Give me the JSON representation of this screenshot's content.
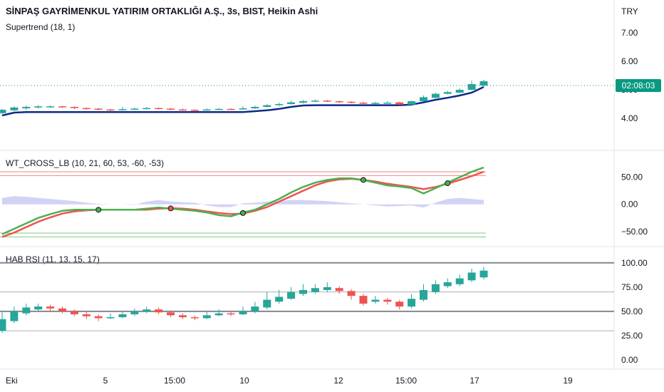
{
  "header": {
    "title": "SİNPAŞ GAYRİMENKUL YATIRIM ORTAKLIĞI A.Ş., 3s, BIST, Heikin Ashi",
    "indicator": "Supertrend (18, 1)",
    "currency": "TRY",
    "countdown": "02:08:03"
  },
  "panes": {
    "wt_label": "WT_CROSS_LB (10, 21, 60, 53, -60, -53)",
    "rsi_label": "HAB RSI (11, 13, 15, 17)"
  },
  "colors": {
    "up": "#26a69a",
    "down": "#ef5350",
    "supertrend": "#0d2a8a",
    "wt1": "#4caf50",
    "wt2": "#ef5350",
    "diff": "#b2b5f0",
    "last_price": "#089981",
    "level_line": "#787b86"
  },
  "chart_data": [
    {
      "type": "candlestick",
      "name": "price",
      "y_ticks": [
        "7.00",
        "6.00",
        "5.00",
        "4.00"
      ],
      "ylim": [
        3.4,
        7.2
      ],
      "last_price_y": 5.0,
      "candles": [
        {
          "o": 4.18,
          "c": 4.3,
          "h": 4.33,
          "l": 4.15
        },
        {
          "o": 4.28,
          "c": 4.38,
          "h": 4.42,
          "l": 4.25
        },
        {
          "o": 4.35,
          "c": 4.4,
          "h": 4.45,
          "l": 4.3
        },
        {
          "o": 4.38,
          "c": 4.42,
          "h": 4.46,
          "l": 4.34
        },
        {
          "o": 4.4,
          "c": 4.42,
          "h": 4.45,
          "l": 4.37
        },
        {
          "o": 4.42,
          "c": 4.4,
          "h": 4.44,
          "l": 4.36
        },
        {
          "o": 4.4,
          "c": 4.36,
          "h": 4.42,
          "l": 4.32
        },
        {
          "o": 4.36,
          "c": 4.34,
          "h": 4.38,
          "l": 4.3
        },
        {
          "o": 4.34,
          "c": 4.31,
          "h": 4.36,
          "l": 4.28
        },
        {
          "o": 4.31,
          "c": 4.3,
          "h": 4.33,
          "l": 4.25
        },
        {
          "o": 4.3,
          "c": 4.32,
          "h": 4.4,
          "l": 4.27
        },
        {
          "o": 4.32,
          "c": 4.34,
          "h": 4.38,
          "l": 4.3
        },
        {
          "o": 4.34,
          "c": 4.36,
          "h": 4.4,
          "l": 4.31
        },
        {
          "o": 4.36,
          "c": 4.34,
          "h": 4.38,
          "l": 4.31
        },
        {
          "o": 4.34,
          "c": 4.31,
          "h": 4.36,
          "l": 4.28
        },
        {
          "o": 4.31,
          "c": 4.3,
          "h": 4.34,
          "l": 4.27
        },
        {
          "o": 4.3,
          "c": 4.29,
          "h": 4.32,
          "l": 4.26
        },
        {
          "o": 4.29,
          "c": 4.31,
          "h": 4.35,
          "l": 4.27
        },
        {
          "o": 4.31,
          "c": 4.33,
          "h": 4.36,
          "l": 4.29
        },
        {
          "o": 4.33,
          "c": 4.32,
          "h": 4.35,
          "l": 4.29
        },
        {
          "o": 4.32,
          "c": 4.35,
          "h": 4.42,
          "l": 4.3
        },
        {
          "o": 4.35,
          "c": 4.4,
          "h": 4.44,
          "l": 4.33
        },
        {
          "o": 4.4,
          "c": 4.46,
          "h": 4.5,
          "l": 4.38
        },
        {
          "o": 4.46,
          "c": 4.5,
          "h": 4.55,
          "l": 4.43
        },
        {
          "o": 4.5,
          "c": 4.56,
          "h": 4.62,
          "l": 4.48
        },
        {
          "o": 4.55,
          "c": 4.6,
          "h": 4.64,
          "l": 4.52
        },
        {
          "o": 4.6,
          "c": 4.62,
          "h": 4.66,
          "l": 4.57
        },
        {
          "o": 4.62,
          "c": 4.6,
          "h": 4.65,
          "l": 4.57
        },
        {
          "o": 4.6,
          "c": 4.58,
          "h": 4.62,
          "l": 4.54
        },
        {
          "o": 4.58,
          "c": 4.55,
          "h": 4.6,
          "l": 4.52
        },
        {
          "o": 4.55,
          "c": 4.52,
          "h": 4.58,
          "l": 4.49
        },
        {
          "o": 4.52,
          "c": 4.54,
          "h": 4.58,
          "l": 4.5
        },
        {
          "o": 4.54,
          "c": 4.55,
          "h": 4.6,
          "l": 4.52
        },
        {
          "o": 4.56,
          "c": 4.48,
          "h": 4.58,
          "l": 4.46
        },
        {
          "o": 4.48,
          "c": 4.6,
          "h": 4.62,
          "l": 4.47
        },
        {
          "o": 4.6,
          "c": 4.74,
          "h": 4.8,
          "l": 4.58
        },
        {
          "o": 4.72,
          "c": 4.86,
          "h": 4.9,
          "l": 4.7
        },
        {
          "o": 4.86,
          "c": 4.92,
          "h": 4.96,
          "l": 4.84
        },
        {
          "o": 4.9,
          "c": 5.0,
          "h": 5.05,
          "l": 4.88
        },
        {
          "o": 5.0,
          "c": 5.2,
          "h": 5.32,
          "l": 4.98
        },
        {
          "o": 5.15,
          "c": 5.3,
          "h": 5.35,
          "l": 5.12
        }
      ],
      "supertrend": [
        4.1,
        4.2,
        4.22,
        4.22,
        4.22,
        4.22,
        4.22,
        4.22,
        4.22,
        4.22,
        4.22,
        4.22,
        4.22,
        4.22,
        4.22,
        4.22,
        4.22,
        4.22,
        4.22,
        4.22,
        4.22,
        4.25,
        4.28,
        4.33,
        4.4,
        4.45,
        4.46,
        4.46,
        4.46,
        4.46,
        4.46,
        4.46,
        4.46,
        4.46,
        4.48,
        4.56,
        4.65,
        4.72,
        4.8,
        4.9,
        5.1
      ]
    },
    {
      "type": "line",
      "name": "wt_cross",
      "y_ticks": [
        "50.00",
        "0.00",
        "−50.00"
      ],
      "ylim": [
        -70,
        85
      ],
      "levels": {
        "upper_1": 60,
        "upper_2": 53,
        "lower_1": -53,
        "lower_2": -60
      },
      "series": [
        {
          "values": [
            -55,
            -45,
            -35,
            -25,
            -18,
            -12,
            -10,
            -10,
            -10,
            -10,
            -10,
            -10,
            -8,
            -6,
            -8,
            -10,
            -12,
            -15,
            -20,
            -22,
            -15,
            -10,
            0,
            10,
            22,
            32,
            40,
            45,
            48,
            48,
            45,
            40,
            35,
            33,
            30,
            20,
            30,
            40,
            50,
            60,
            68
          ]
        },
        {
          "values": [
            -60,
            -52,
            -42,
            -32,
            -24,
            -17,
            -13,
            -11,
            -10,
            -10,
            -10,
            -10,
            -10,
            -8,
            -7,
            -8,
            -10,
            -13,
            -16,
            -18,
            -17,
            -12,
            -5,
            5,
            15,
            25,
            35,
            42,
            46,
            47,
            45,
            42,
            38,
            35,
            32,
            28,
            32,
            38,
            45,
            52,
            60
          ]
        },
        {
          "values": [
            12,
            15,
            14,
            12,
            10,
            8,
            6,
            3,
            1,
            0,
            0,
            -1,
            5,
            8,
            5,
            4,
            3,
            -2,
            -5,
            -5,
            2,
            3,
            5,
            6,
            8,
            8,
            7,
            6,
            4,
            2,
            0,
            -2,
            -4,
            -3,
            -2,
            -6,
            3,
            10,
            12,
            10,
            8
          ]
        }
      ]
    },
    {
      "type": "candlestick",
      "name": "hab_rsi",
      "y_ticks": [
        "100.00",
        "75.00",
        "50.00",
        "25.00",
        "0.00"
      ],
      "ylim": [
        0,
        105
      ],
      "levels": [
        100,
        70,
        50,
        30
      ],
      "candles": [
        {
          "o": 30,
          "c": 42,
          "h": 50,
          "l": 28
        },
        {
          "o": 40,
          "c": 50,
          "h": 55,
          "l": 38
        },
        {
          "o": 48,
          "c": 54,
          "h": 58,
          "l": 46
        },
        {
          "o": 52,
          "c": 55,
          "h": 58,
          "l": 50
        },
        {
          "o": 55,
          "c": 53,
          "h": 57,
          "l": 50
        },
        {
          "o": 53,
          "c": 50,
          "h": 55,
          "l": 48
        },
        {
          "o": 50,
          "c": 47,
          "h": 52,
          "l": 45
        },
        {
          "o": 47,
          "c": 45,
          "h": 50,
          "l": 42
        },
        {
          "o": 45,
          "c": 43,
          "h": 47,
          "l": 40
        },
        {
          "o": 43,
          "c": 44,
          "h": 48,
          "l": 42
        },
        {
          "o": 44,
          "c": 47,
          "h": 50,
          "l": 43
        },
        {
          "o": 47,
          "c": 50,
          "h": 53,
          "l": 45
        },
        {
          "o": 50,
          "c": 52,
          "h": 55,
          "l": 48
        },
        {
          "o": 52,
          "c": 49,
          "h": 54,
          "l": 47
        },
        {
          "o": 49,
          "c": 46,
          "h": 51,
          "l": 44
        },
        {
          "o": 46,
          "c": 44,
          "h": 48,
          "l": 42
        },
        {
          "o": 44,
          "c": 43,
          "h": 46,
          "l": 41
        },
        {
          "o": 43,
          "c": 46,
          "h": 50,
          "l": 42
        },
        {
          "o": 46,
          "c": 48,
          "h": 52,
          "l": 45
        },
        {
          "o": 48,
          "c": 47,
          "h": 50,
          "l": 45
        },
        {
          "o": 47,
          "c": 50,
          "h": 55,
          "l": 46
        },
        {
          "o": 50,
          "c": 55,
          "h": 60,
          "l": 48
        },
        {
          "o": 54,
          "c": 62,
          "h": 70,
          "l": 52
        },
        {
          "o": 60,
          "c": 65,
          "h": 72,
          "l": 58
        },
        {
          "o": 63,
          "c": 70,
          "h": 75,
          "l": 62
        },
        {
          "o": 68,
          "c": 72,
          "h": 78,
          "l": 66
        },
        {
          "o": 70,
          "c": 74,
          "h": 78,
          "l": 68
        },
        {
          "o": 72,
          "c": 75,
          "h": 80,
          "l": 70
        },
        {
          "o": 74,
          "c": 71,
          "h": 76,
          "l": 68
        },
        {
          "o": 71,
          "c": 66,
          "h": 73,
          "l": 62
        },
        {
          "o": 66,
          "c": 58,
          "h": 68,
          "l": 56
        },
        {
          "o": 60,
          "c": 62,
          "h": 66,
          "l": 58
        },
        {
          "o": 62,
          "c": 60,
          "h": 64,
          "l": 57
        },
        {
          "o": 60,
          "c": 55,
          "h": 62,
          "l": 52
        },
        {
          "o": 55,
          "c": 63,
          "h": 68,
          "l": 53
        },
        {
          "o": 62,
          "c": 72,
          "h": 78,
          "l": 60
        },
        {
          "o": 70,
          "c": 78,
          "h": 82,
          "l": 68
        },
        {
          "o": 76,
          "c": 80,
          "h": 84,
          "l": 74
        },
        {
          "o": 78,
          "c": 84,
          "h": 88,
          "l": 76
        },
        {
          "o": 82,
          "c": 90,
          "h": 94,
          "l": 80
        },
        {
          "o": 85,
          "c": 92,
          "h": 96,
          "l": 83
        }
      ]
    }
  ],
  "x_axis": {
    "labels": [
      "Eki",
      "5",
      "15:00",
      "10",
      "12",
      "15:00",
      "17",
      "19"
    ]
  }
}
